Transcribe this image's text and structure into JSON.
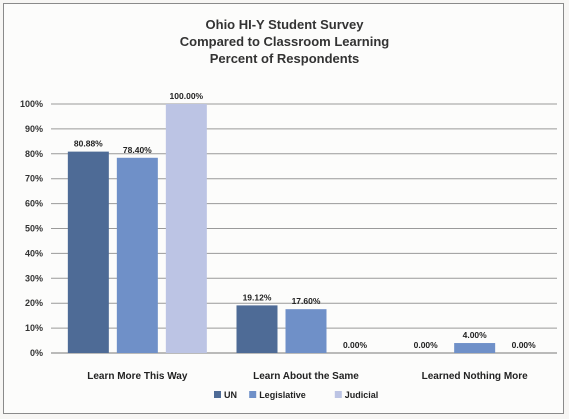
{
  "chart_data": {
    "type": "bar",
    "title": [
      "Ohio HI-Y Student Survey",
      "Compared to Classroom Learning",
      "Percent of Respondents"
    ],
    "categories": [
      "Learn More This Way",
      "Learn About the Same",
      "Learned Nothing More"
    ],
    "series": [
      {
        "name": "UN",
        "color": "#4e6b96",
        "values": [
          80.88,
          19.12,
          0.0
        ],
        "labels": [
          "80.88%",
          "19.12%",
          "0.00%"
        ]
      },
      {
        "name": "Legislative",
        "color": "#6f90c8",
        "values": [
          78.4,
          17.6,
          4.0
        ],
        "labels": [
          "78.40%",
          "17.60%",
          "4.00%"
        ]
      },
      {
        "name": "Judicial",
        "color": "#bcc4e4",
        "values": [
          100.0,
          0.0,
          0.0
        ],
        "labels": [
          "100.00%",
          "0.00%",
          "0.00%"
        ]
      }
    ],
    "ylim": [
      0,
      100
    ],
    "yticks": [
      "0%",
      "10%",
      "20%",
      "30%",
      "40%",
      "50%",
      "60%",
      "70%",
      "80%",
      "90%",
      "100%"
    ],
    "grid": true,
    "legend": "bottom"
  }
}
